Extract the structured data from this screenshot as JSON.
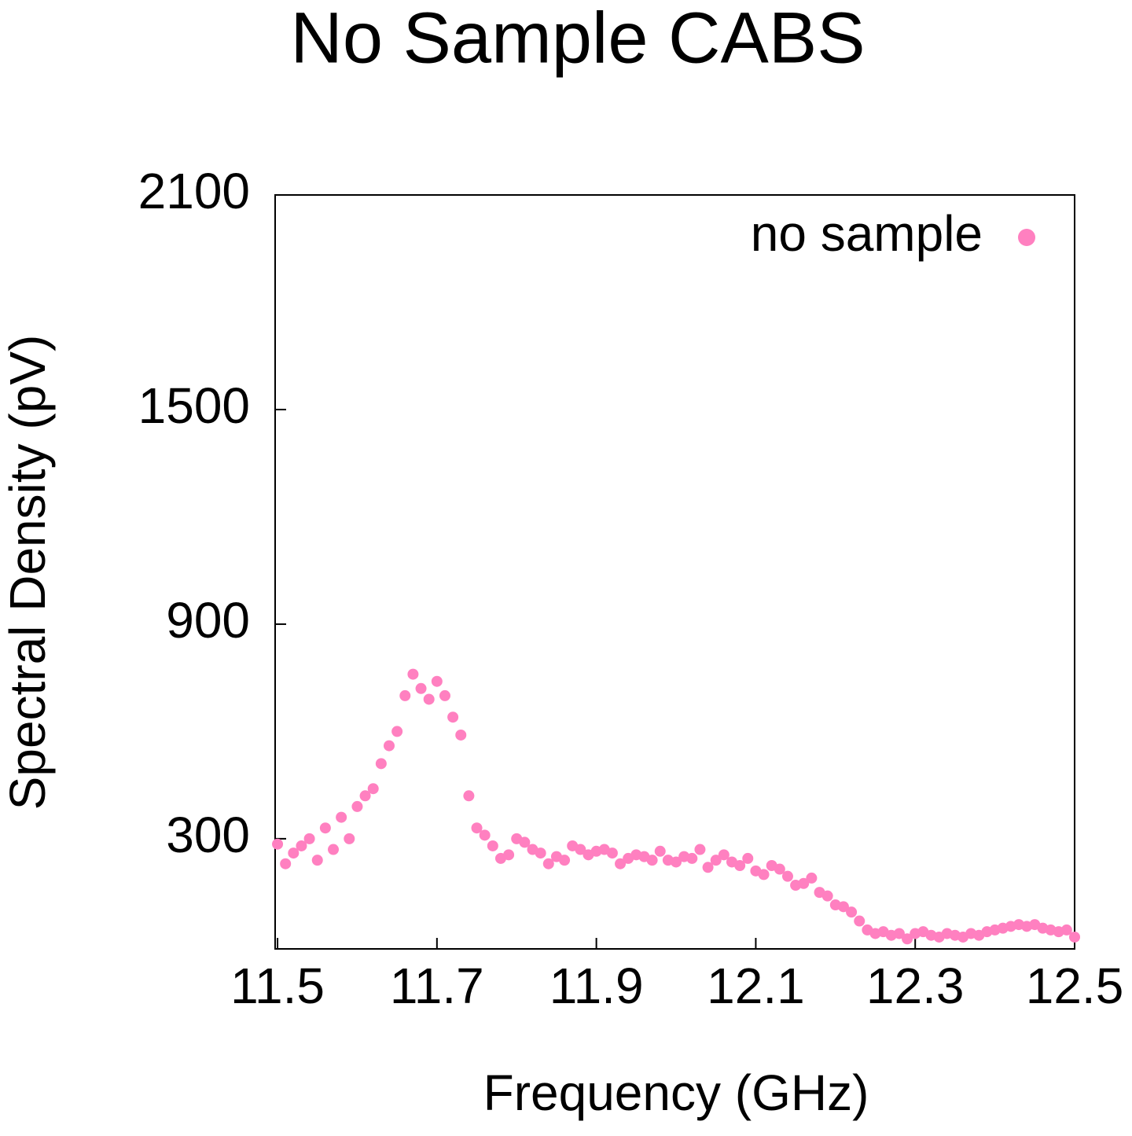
{
  "chart_data": {
    "type": "scatter",
    "title": "No Sample CABS",
    "x_label": "Frequency (GHz)",
    "y_label": "Spectral Density (pV)",
    "xlim": [
      11.497,
      12.5
    ],
    "ylim": [
      -8,
      2100
    ],
    "xticks": [
      11.5,
      11.7,
      11.9,
      12.1,
      12.3,
      12.5
    ],
    "yticks": [
      300,
      900,
      1500,
      2100
    ],
    "legend": "top-right",
    "series": [
      {
        "name": "no sample",
        "color": "#ff80c0",
        "x": [
          11.5,
          11.51,
          11.52,
          11.53,
          11.54,
          11.55,
          11.56,
          11.57,
          11.58,
          11.59,
          11.6,
          11.61,
          11.62,
          11.63,
          11.64,
          11.65,
          11.66,
          11.67,
          11.68,
          11.69,
          11.7,
          11.71,
          11.72,
          11.73,
          11.74,
          11.75,
          11.76,
          11.77,
          11.78,
          11.79,
          11.8,
          11.81,
          11.82,
          11.83,
          11.84,
          11.85,
          11.86,
          11.87,
          11.88,
          11.89,
          11.9,
          11.91,
          11.92,
          11.93,
          11.94,
          11.95,
          11.96,
          11.97,
          11.98,
          11.99,
          12.0,
          12.01,
          12.02,
          12.03,
          12.04,
          12.05,
          12.06,
          12.07,
          12.08,
          12.09,
          12.1,
          12.11,
          12.12,
          12.13,
          12.14,
          12.15,
          12.16,
          12.17,
          12.18,
          12.19,
          12.2,
          12.21,
          12.22,
          12.23,
          12.24,
          12.25,
          12.26,
          12.27,
          12.28,
          12.29,
          12.3,
          12.31,
          12.32,
          12.33,
          12.34,
          12.35,
          12.36,
          12.37,
          12.38,
          12.39,
          12.4,
          12.41,
          12.42,
          12.43,
          12.44,
          12.45,
          12.46,
          12.47,
          12.48,
          12.49,
          12.5
        ],
        "values": [
          285,
          230,
          260,
          280,
          300,
          240,
          330,
          270,
          360,
          300,
          390,
          420,
          440,
          510,
          560,
          600,
          700,
          760,
          720,
          690,
          740,
          700,
          640,
          590,
          420,
          330,
          310,
          280,
          245,
          255,
          300,
          290,
          270,
          260,
          230,
          250,
          240,
          280,
          270,
          255,
          265,
          270,
          260,
          230,
          245,
          255,
          250,
          240,
          265,
          240,
          235,
          250,
          245,
          270,
          220,
          240,
          255,
          235,
          225,
          245,
          210,
          200,
          225,
          215,
          195,
          170,
          175,
          190,
          150,
          140,
          115,
          110,
          95,
          70,
          45,
          35,
          40,
          30,
          35,
          20,
          35,
          40,
          30,
          25,
          35,
          30,
          25,
          35,
          30,
          40,
          45,
          50,
          55,
          60,
          55,
          60,
          50,
          45,
          40,
          45,
          25
        ]
      }
    ]
  }
}
